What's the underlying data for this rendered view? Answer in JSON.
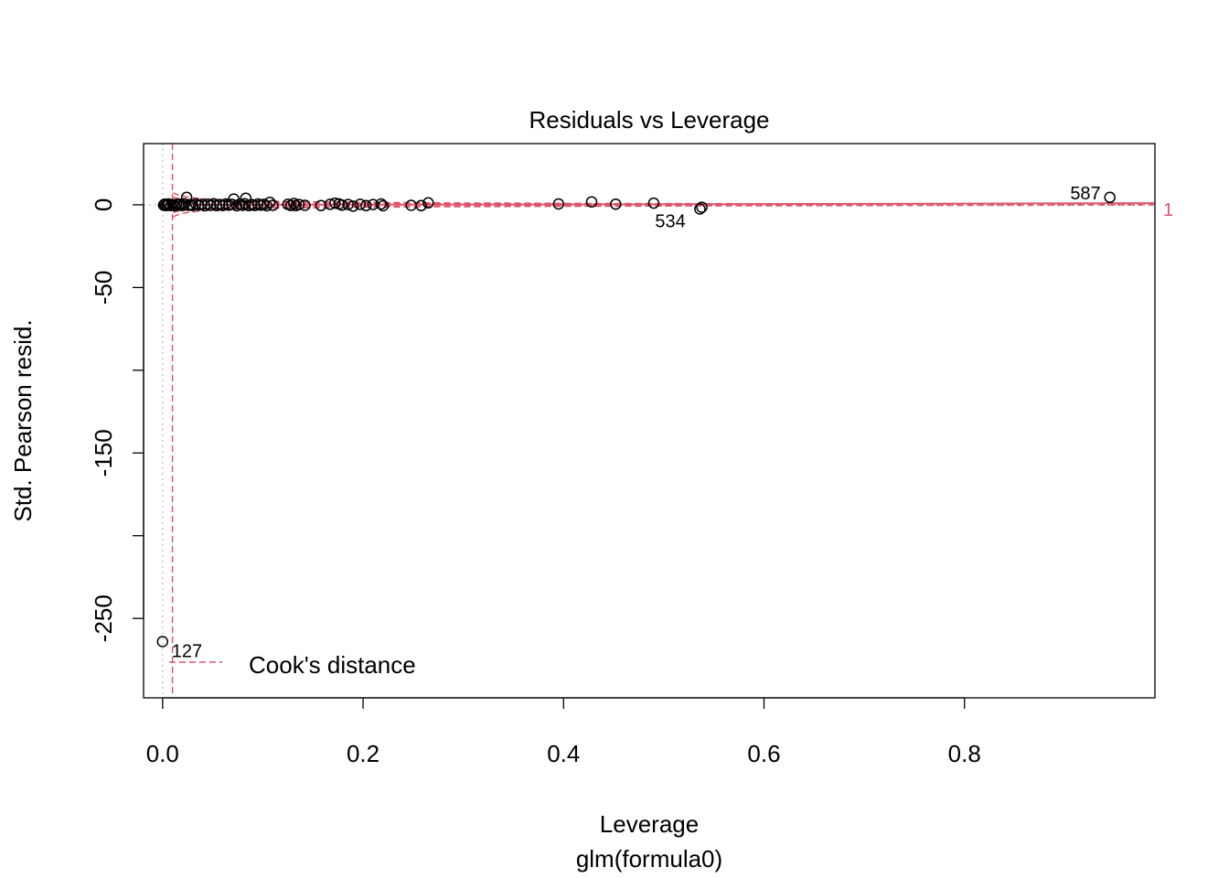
{
  "chart_data": {
    "type": "scatter",
    "title": "Residuals vs Leverage",
    "xlabel": "Leverage",
    "sublabel": "glm(formula0)",
    "ylabel": "Std. Pearson resid.",
    "xlim": [
      -0.019,
      0.99
    ],
    "ylim": [
      -298,
      37
    ],
    "x_ticks": [
      0.0,
      0.2,
      0.4,
      0.6,
      0.8
    ],
    "x_tick_labels": [
      "0.0",
      "0.2",
      "0.4",
      "0.6",
      "0.8"
    ],
    "y_ticks": [
      0,
      -50,
      -100,
      -150,
      -200,
      -250
    ],
    "y_tick_labels": [
      "0",
      "-50",
      "",
      "-150",
      "",
      "-250"
    ],
    "legend": {
      "label": "Cook's distance",
      "position": "bottom-left"
    },
    "cook_contour_label": "1",
    "colors": {
      "points": "#000000",
      "cook": "#df536b",
      "reference": "#bebebe"
    },
    "points": [
      {
        "x": 0.0,
        "y": -264
      },
      {
        "x": 0.001,
        "y": -0.2
      },
      {
        "x": 0.002,
        "y": 0.4
      },
      {
        "x": 0.003,
        "y": -0.5
      },
      {
        "x": 0.004,
        "y": 0.3
      },
      {
        "x": 0.005,
        "y": -0.3
      },
      {
        "x": 0.006,
        "y": 0.5
      },
      {
        "x": 0.008,
        "y": -0.4
      },
      {
        "x": 0.01,
        "y": 0.2
      },
      {
        "x": 0.012,
        "y": -0.6
      },
      {
        "x": 0.014,
        "y": 0.3
      },
      {
        "x": 0.016,
        "y": -0.2
      },
      {
        "x": 0.018,
        "y": 0.4
      },
      {
        "x": 0.02,
        "y": -0.5
      },
      {
        "x": 0.022,
        "y": 0.6
      },
      {
        "x": 0.024,
        "y": 4.5
      },
      {
        "x": 0.026,
        "y": -0.3
      },
      {
        "x": 0.028,
        "y": 0.2
      },
      {
        "x": 0.03,
        "y": -0.4
      },
      {
        "x": 0.033,
        "y": 0.5
      },
      {
        "x": 0.036,
        "y": -0.2
      },
      {
        "x": 0.039,
        "y": 0.3
      },
      {
        "x": 0.042,
        "y": -0.6
      },
      {
        "x": 0.045,
        "y": 0.4
      },
      {
        "x": 0.048,
        "y": -0.3
      },
      {
        "x": 0.051,
        "y": 0.6
      },
      {
        "x": 0.054,
        "y": -0.5
      },
      {
        "x": 0.057,
        "y": 0.2
      },
      {
        "x": 0.06,
        "y": -0.4
      },
      {
        "x": 0.063,
        "y": 0.5
      },
      {
        "x": 0.066,
        "y": -0.2
      },
      {
        "x": 0.069,
        "y": 0.3
      },
      {
        "x": 0.071,
        "y": 3.5
      },
      {
        "x": 0.074,
        "y": -0.6
      },
      {
        "x": 0.077,
        "y": 0.4
      },
      {
        "x": 0.08,
        "y": -0.3
      },
      {
        "x": 0.082,
        "y": 0.6
      },
      {
        "x": 0.083,
        "y": 4.0
      },
      {
        "x": 0.086,
        "y": -0.5
      },
      {
        "x": 0.089,
        "y": 0.2
      },
      {
        "x": 0.092,
        "y": -0.4
      },
      {
        "x": 0.095,
        "y": 0.5
      },
      {
        "x": 0.098,
        "y": -0.2
      },
      {
        "x": 0.101,
        "y": 0.3
      },
      {
        "x": 0.104,
        "y": -0.6
      },
      {
        "x": 0.107,
        "y": 1.5
      },
      {
        "x": 0.11,
        "y": -0.3
      },
      {
        "x": 0.125,
        "y": 0.3
      },
      {
        "x": 0.128,
        "y": -0.4
      },
      {
        "x": 0.131,
        "y": 0.8
      },
      {
        "x": 0.133,
        "y": -0.5
      },
      {
        "x": 0.136,
        "y": 0.2
      },
      {
        "x": 0.142,
        "y": -0.3
      },
      {
        "x": 0.158,
        "y": -0.4
      },
      {
        "x": 0.167,
        "y": 0.3
      },
      {
        "x": 0.172,
        "y": 1.0
      },
      {
        "x": 0.176,
        "y": 0.5
      },
      {
        "x": 0.179,
        "y": -0.2
      },
      {
        "x": 0.185,
        "y": 0.2
      },
      {
        "x": 0.19,
        "y": -0.8
      },
      {
        "x": 0.197,
        "y": 0.3
      },
      {
        "x": 0.203,
        "y": -0.5
      },
      {
        "x": 0.21,
        "y": 0.2
      },
      {
        "x": 0.218,
        "y": 0.5
      },
      {
        "x": 0.22,
        "y": -0.6
      },
      {
        "x": 0.248,
        "y": -0.3
      },
      {
        "x": 0.258,
        "y": -0.5
      },
      {
        "x": 0.265,
        "y": 1.2
      },
      {
        "x": 0.395,
        "y": 0.5
      },
      {
        "x": 0.428,
        "y": 1.8
      },
      {
        "x": 0.452,
        "y": 0.4
      },
      {
        "x": 0.49,
        "y": 1.0
      },
      {
        "x": 0.536,
        "y": -2.5
      },
      {
        "x": 0.538,
        "y": -1.5
      },
      {
        "x": 0.945,
        "y": 4.5
      }
    ],
    "point_labels": [
      {
        "text": "127",
        "x": 0.0,
        "y": -264,
        "anchor": "right"
      },
      {
        "text": "534",
        "x": 0.536,
        "y": -2.5,
        "anchor": "left"
      },
      {
        "text": "587",
        "x": 0.945,
        "y": 4.5,
        "anchor": "left"
      }
    ],
    "smoother": [
      [
        0.0,
        0.0
      ],
      [
        0.5,
        0.3
      ],
      [
        0.99,
        1.0
      ]
    ]
  }
}
